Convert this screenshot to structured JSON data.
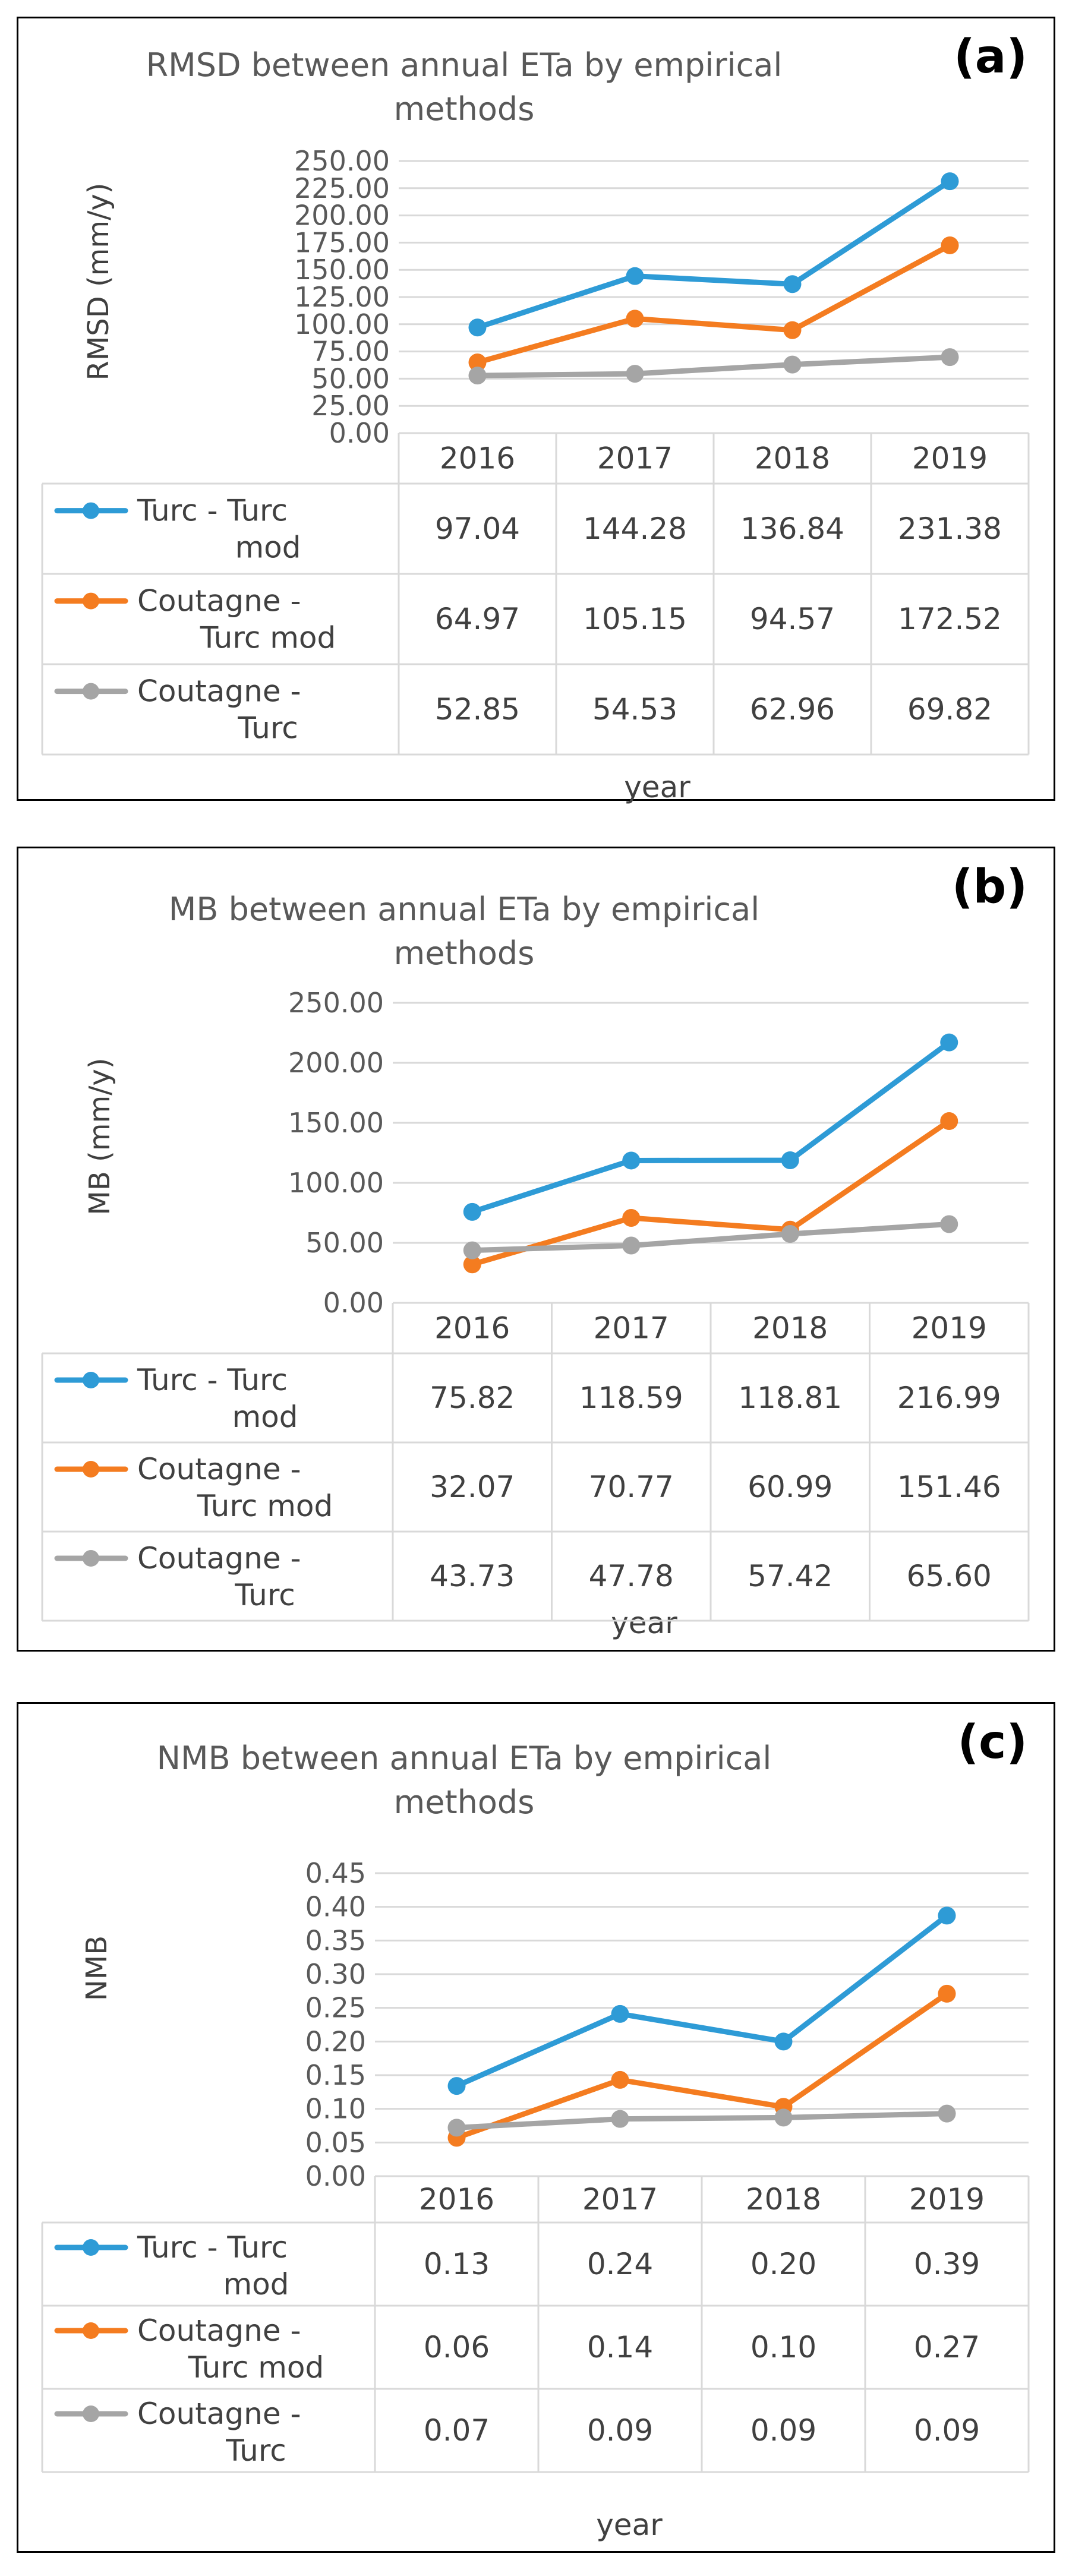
{
  "colors": {
    "turc_turcmod": "#2E9BD6",
    "coutagne_turcmod": "#F47C20",
    "coutagne_turc": "#A5A5A5",
    "grid": "#D9D9D9",
    "border": "#000000"
  },
  "chart_data": [
    {
      "id": "a",
      "type": "line",
      "panel_tag": "(a)",
      "title_lines": [
        "RMSD between annual ETa by empirical",
        "methods"
      ],
      "ylabel": "RMSD (mm/y)",
      "xlabel": "year",
      "ylim": [
        0,
        250
      ],
      "yticks": [
        "250.00",
        "225.00",
        "200.00",
        "175.00",
        "150.00",
        "125.00",
        "100.00",
        "75.00",
        "50.00",
        "25.00",
        "0.00"
      ],
      "categories": [
        "2016",
        "2017",
        "2018",
        "2019"
      ],
      "series": [
        {
          "key": "turc_turcmod",
          "name_lines": [
            "Turc - Turc",
            "mod"
          ],
          "values": [
            97.04,
            144.28,
            136.84,
            231.38
          ],
          "labels": [
            "97.04",
            "144.28",
            "136.84",
            "231.38"
          ]
        },
        {
          "key": "coutagne_turcmod",
          "name_lines": [
            "Coutagne -",
            "Turc mod"
          ],
          "values": [
            64.97,
            105.15,
            94.57,
            172.52
          ],
          "labels": [
            "64.97",
            "105.15",
            "94.57",
            "172.52"
          ]
        },
        {
          "key": "coutagne_turc",
          "name_lines": [
            "Coutagne -",
            "Turc"
          ],
          "values": [
            52.85,
            54.53,
            62.96,
            69.82
          ],
          "labels": [
            "52.85",
            "54.53",
            "62.96",
            "69.82"
          ]
        }
      ]
    },
    {
      "id": "b",
      "type": "line",
      "panel_tag": "(b)",
      "title_lines": [
        "MB between annual ETa by empirical methods"
      ],
      "ylabel": "MB (mm/y)",
      "xlabel": "year",
      "ylim": [
        0,
        250
      ],
      "yticks": [
        "250.00",
        "200.00",
        "150.00",
        "100.00",
        "50.00",
        "0.00"
      ],
      "categories": [
        "2016",
        "2017",
        "2018",
        "2019"
      ],
      "series": [
        {
          "key": "turc_turcmod",
          "name_lines": [
            "Turc - Turc",
            "mod"
          ],
          "values": [
            75.82,
            118.59,
            118.81,
            216.99
          ],
          "labels": [
            "75.82",
            "118.59",
            "118.81",
            "216.99"
          ]
        },
        {
          "key": "coutagne_turcmod",
          "name_lines": [
            "Coutagne -",
            "Turc mod"
          ],
          "values": [
            32.07,
            70.77,
            60.99,
            151.46
          ],
          "labels": [
            "32.07",
            "70.77",
            "60.99",
            "151.46"
          ]
        },
        {
          "key": "coutagne_turc",
          "name_lines": [
            "Coutagne -",
            "Turc"
          ],
          "values": [
            43.73,
            47.78,
            57.42,
            65.6
          ],
          "labels": [
            "43.73",
            "47.78",
            "57.42",
            "65.60"
          ]
        }
      ]
    },
    {
      "id": "c",
      "type": "line",
      "panel_tag": "(c)",
      "title_lines": [
        "NMB between annual ETa by empirical",
        "methods"
      ],
      "ylabel": "NMB",
      "xlabel": "year",
      "ylim": [
        0,
        0.45
      ],
      "yticks": [
        "0.45",
        "0.40",
        "0.35",
        "0.30",
        "0.25",
        "0.20",
        "0.15",
        "0.10",
        "0.05",
        "0.00"
      ],
      "categories": [
        "2016",
        "2017",
        "2018",
        "2019"
      ],
      "series": [
        {
          "key": "turc_turcmod",
          "name_lines": [
            "Turc - Turc",
            "mod"
          ],
          "values": [
            0.134,
            0.241,
            0.2,
            0.387
          ],
          "labels": [
            "0.13",
            "0.24",
            "0.20",
            "0.39"
          ]
        },
        {
          "key": "coutagne_turcmod",
          "name_lines": [
            "Coutagne -",
            "Turc mod"
          ],
          "values": [
            0.057,
            0.143,
            0.103,
            0.271
          ],
          "labels": [
            "0.06",
            "0.14",
            "0.10",
            "0.27"
          ]
        },
        {
          "key": "coutagne_turc",
          "name_lines": [
            "Coutagne -",
            "Turc"
          ],
          "values": [
            0.072,
            0.085,
            0.087,
            0.093
          ],
          "labels": [
            "0.07",
            "0.09",
            "0.09",
            "0.09"
          ]
        }
      ]
    }
  ]
}
